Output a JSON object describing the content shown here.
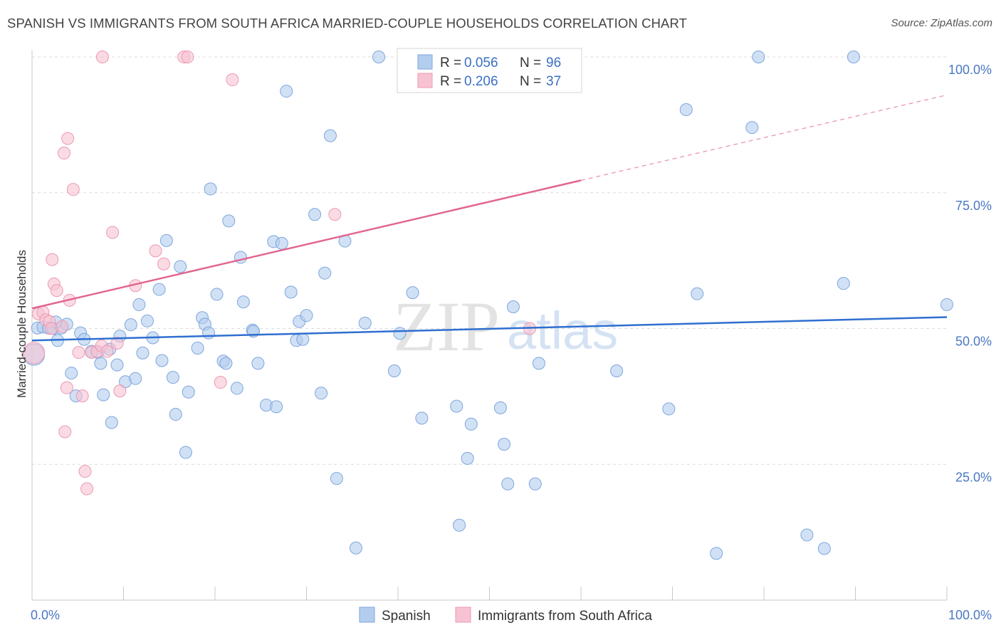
{
  "title": "SPANISH VS IMMIGRANTS FROM SOUTH AFRICA MARRIED-COUPLE HOUSEHOLDS CORRELATION CHART",
  "source": "Source: ZipAtlas.com",
  "watermark": {
    "zip": "ZIP",
    "atlas": "atlas"
  },
  "colors": {
    "spanish_fill": "#b3cdee",
    "spanish_stroke": "#7ea6dd",
    "spanish_line": "#2f6fd0",
    "sa_fill": "#f7c3d2",
    "sa_stroke": "#ec99b3",
    "sa_line": "#e2658f",
    "grid": "#dcdcdc",
    "tick_label": "#4a78c2"
  },
  "legend": {
    "rows": [
      {
        "r_label": "R = ",
        "r_value": "0.056",
        "n_label": "N = ",
        "n_value": "96"
      },
      {
        "r_label": "R = ",
        "r_value": "0.206",
        "n_label": "N = ",
        "n_value": "37"
      }
    ]
  },
  "bottom_legend": [
    "Spanish",
    "Immigrants from South Africa"
  ],
  "chart_data": {
    "type": "scatter",
    "title": "SPANISH VS IMMIGRANTS FROM SOUTH AFRICA MARRIED-COUPLE HOUSEHOLDS CORRELATION CHART",
    "xlabel": "",
    "ylabel": "Married-couple Households",
    "xlim": [
      0,
      100
    ],
    "ylim": [
      0,
      100
    ],
    "x_tick_labels": [
      "0.0%",
      "100.0%"
    ],
    "y_tick_labels": [
      "25.0%",
      "50.0%",
      "75.0%",
      "100.0%"
    ],
    "y_ticks": [
      25,
      50,
      75,
      100
    ],
    "grid": true,
    "legend_position": "top-center",
    "series": [
      {
        "name": "Spanish",
        "r": 0.056,
        "n": 96,
        "trend": {
          "x": [
            0,
            100
          ],
          "y": [
            47.8,
            52.1
          ],
          "solid_until": 100
        },
        "points": [
          [
            0.2,
            45.2
          ],
          [
            0.6,
            50.1
          ],
          [
            1.2,
            50.3
          ],
          [
            1.8,
            50.1
          ],
          [
            2.3,
            50.0
          ],
          [
            2.8,
            47.8
          ],
          [
            3.2,
            50.1
          ],
          [
            3.8,
            50.8
          ],
          [
            4.3,
            41.8
          ],
          [
            4.8,
            37.6
          ],
          [
            5.3,
            49.2
          ],
          [
            5.7,
            48.0
          ],
          [
            6.5,
            45.8
          ],
          [
            7.2,
            45.6
          ],
          [
            7.5,
            43.6
          ],
          [
            7.8,
            37.8
          ],
          [
            8.5,
            46.2
          ],
          [
            8.7,
            32.7
          ],
          [
            9.3,
            43.3
          ],
          [
            9.6,
            48.6
          ],
          [
            10.2,
            40.2
          ],
          [
            10.8,
            50.7
          ],
          [
            11.3,
            40.8
          ],
          [
            11.7,
            54.4
          ],
          [
            12.1,
            45.5
          ],
          [
            12.6,
            51.4
          ],
          [
            13.2,
            48.3
          ],
          [
            13.9,
            57.2
          ],
          [
            14.2,
            44.1
          ],
          [
            14.7,
            66.2
          ],
          [
            15.4,
            41.0
          ],
          [
            15.7,
            34.2
          ],
          [
            16.2,
            61.4
          ],
          [
            16.8,
            27.2
          ],
          [
            17.1,
            38.3
          ],
          [
            18.1,
            46.4
          ],
          [
            18.6,
            52.0
          ],
          [
            18.9,
            50.8
          ],
          [
            19.3,
            49.2
          ],
          [
            19.5,
            75.7
          ],
          [
            20.2,
            56.3
          ],
          [
            20.9,
            44.0
          ],
          [
            21.2,
            43.6
          ],
          [
            21.5,
            69.8
          ],
          [
            22.4,
            39.0
          ],
          [
            22.8,
            63.1
          ],
          [
            23.1,
            54.9
          ],
          [
            24.1,
            49.7
          ],
          [
            24.2,
            49.5
          ],
          [
            24.7,
            43.6
          ],
          [
            25.6,
            35.9
          ],
          [
            26.4,
            66.0
          ],
          [
            26.7,
            35.6
          ],
          [
            27.3,
            65.7
          ],
          [
            27.8,
            93.7
          ],
          [
            28.3,
            56.7
          ],
          [
            28.9,
            47.8
          ],
          [
            29.2,
            51.3
          ],
          [
            29.6,
            48.0
          ],
          [
            30.0,
            52.4
          ],
          [
            30.9,
            71.0
          ],
          [
            31.6,
            38.1
          ],
          [
            32.0,
            60.2
          ],
          [
            32.6,
            85.5
          ],
          [
            33.3,
            22.4
          ],
          [
            34.2,
            66.1
          ],
          [
            35.4,
            9.6
          ],
          [
            36.4,
            51.0
          ],
          [
            37.9,
            100.0
          ],
          [
            39.6,
            42.2
          ],
          [
            40.2,
            49.1
          ],
          [
            41.6,
            56.6
          ],
          [
            42.6,
            33.5
          ],
          [
            46.4,
            35.7
          ],
          [
            46.7,
            13.8
          ],
          [
            47.6,
            26.1
          ],
          [
            48.0,
            32.4
          ],
          [
            51.2,
            35.4
          ],
          [
            51.6,
            28.7
          ],
          [
            52.0,
            21.4
          ],
          [
            52.6,
            54.0
          ],
          [
            55.0,
            21.4
          ],
          [
            55.4,
            43.6
          ],
          [
            63.9,
            42.2
          ],
          [
            69.6,
            35.2
          ],
          [
            71.5,
            90.3
          ],
          [
            72.7,
            56.4
          ],
          [
            74.8,
            8.6
          ],
          [
            78.7,
            87.0
          ],
          [
            79.4,
            100.0
          ],
          [
            84.7,
            12.0
          ],
          [
            86.6,
            9.5
          ],
          [
            88.7,
            58.3
          ],
          [
            89.8,
            100.0
          ],
          [
            100.0,
            54.4
          ],
          [
            2.6,
            51.2
          ]
        ]
      },
      {
        "name": "Immigrants from South Africa",
        "r": 0.206,
        "n": 37,
        "trend": {
          "x": [
            0,
            100
          ],
          "y": [
            53.7,
            93.0
          ],
          "solid_until": 60
        },
        "points": [
          [
            0.2,
            45.5
          ],
          [
            0.7,
            52.7
          ],
          [
            1.2,
            53.0
          ],
          [
            1.5,
            51.6
          ],
          [
            1.9,
            51.3
          ],
          [
            2.1,
            50.0
          ],
          [
            2.2,
            62.7
          ],
          [
            2.4,
            58.2
          ],
          [
            2.7,
            57.0
          ],
          [
            3.3,
            50.4
          ],
          [
            3.5,
            82.3
          ],
          [
            3.6,
            31.0
          ],
          [
            3.8,
            39.1
          ],
          [
            3.9,
            85.0
          ],
          [
            4.1,
            55.2
          ],
          [
            4.5,
            75.6
          ],
          [
            5.1,
            45.6
          ],
          [
            5.5,
            37.6
          ],
          [
            5.8,
            23.7
          ],
          [
            6.0,
            20.5
          ],
          [
            6.5,
            45.6
          ],
          [
            7.1,
            45.8
          ],
          [
            7.6,
            46.8
          ],
          [
            7.7,
            100.0
          ],
          [
            8.2,
            45.8
          ],
          [
            8.8,
            67.7
          ],
          [
            9.3,
            47.3
          ],
          [
            9.6,
            38.5
          ],
          [
            11.3,
            57.9
          ],
          [
            13.5,
            64.3
          ],
          [
            14.4,
            61.9
          ],
          [
            16.6,
            100.0
          ],
          [
            17.0,
            100.0
          ],
          [
            20.6,
            40.1
          ],
          [
            21.9,
            95.8
          ],
          [
            33.1,
            71.0
          ],
          [
            54.4,
            50.0
          ]
        ]
      }
    ]
  }
}
